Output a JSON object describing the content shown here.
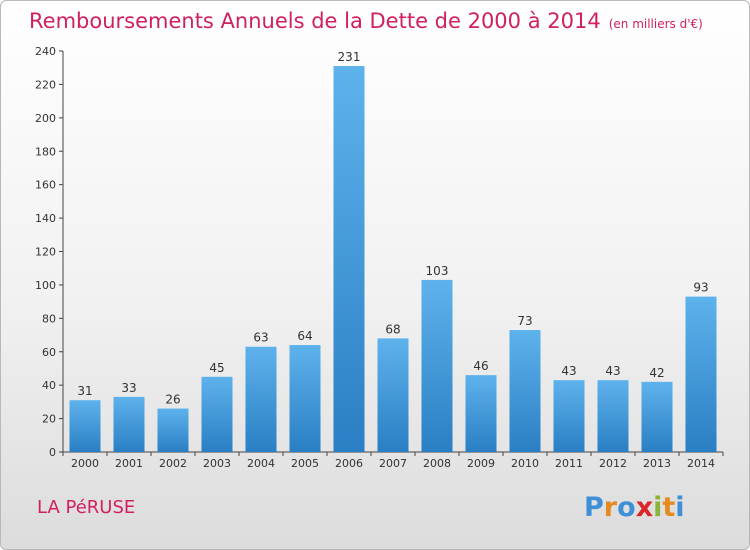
{
  "title": "Remboursements Annuels de la Dette de 2000 à 2014",
  "title_unit": "(en milliers d'€)",
  "commune": "LA PéRUSE",
  "logo_text": "Proxiti",
  "colors": {
    "title": "#d11f60",
    "bar_light": "#5eb2ec",
    "bar_dark": "#2a7fc4"
  },
  "chart_data": {
    "type": "bar",
    "categories": [
      "2000",
      "2001",
      "2002",
      "2003",
      "2004",
      "2005",
      "2006",
      "2007",
      "2008",
      "2009",
      "2010",
      "2011",
      "2012",
      "2013",
      "2014"
    ],
    "values": [
      31,
      33,
      26,
      45,
      63,
      64,
      231,
      68,
      103,
      46,
      73,
      43,
      43,
      42,
      93
    ],
    "ylim": [
      0,
      240
    ],
    "yticks": [
      0,
      20,
      40,
      60,
      80,
      100,
      120,
      140,
      160,
      180,
      200,
      220,
      240
    ],
    "grid": false,
    "data_labels": true
  }
}
